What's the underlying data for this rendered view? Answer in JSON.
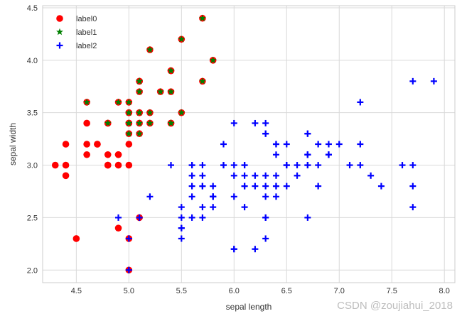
{
  "chart_data": {
    "type": "scatter",
    "title": "",
    "xlabel": "sepal length",
    "ylabel": "sepal width",
    "xlim": [
      4.18,
      8.1
    ],
    "ylim": [
      1.88,
      4.52
    ],
    "xticks": [
      "4.5",
      "5.0",
      "5.5",
      "6.0",
      "6.5",
      "7.0",
      "7.5",
      "8.0"
    ],
    "yticks": [
      "2.0",
      "2.5",
      "3.0",
      "3.5",
      "4.0",
      "4.5"
    ],
    "grid": true,
    "legend_position": "top-left",
    "series": [
      {
        "name": "label0",
        "marker": "circle",
        "color": "#ff0000",
        "points": [
          [
            5.1,
            3.5
          ],
          [
            4.9,
            3.0
          ],
          [
            4.7,
            3.2
          ],
          [
            4.6,
            3.1
          ],
          [
            5.0,
            3.6
          ],
          [
            5.4,
            3.9
          ],
          [
            4.6,
            3.4
          ],
          [
            5.0,
            3.4
          ],
          [
            4.4,
            2.9
          ],
          [
            4.9,
            3.1
          ],
          [
            5.4,
            3.7
          ],
          [
            4.8,
            3.4
          ],
          [
            4.8,
            3.0
          ],
          [
            4.3,
            3.0
          ],
          [
            5.8,
            4.0
          ],
          [
            5.7,
            4.4
          ],
          [
            5.4,
            3.9
          ],
          [
            5.1,
            3.5
          ],
          [
            5.7,
            3.8
          ],
          [
            5.1,
            3.8
          ],
          [
            5.4,
            3.4
          ],
          [
            5.1,
            3.7
          ],
          [
            4.6,
            3.6
          ],
          [
            5.1,
            3.3
          ],
          [
            4.8,
            3.4
          ],
          [
            5.0,
            3.0
          ],
          [
            5.0,
            3.4
          ],
          [
            5.2,
            3.5
          ],
          [
            5.2,
            3.4
          ],
          [
            4.7,
            3.2
          ],
          [
            4.8,
            3.1
          ],
          [
            5.4,
            3.4
          ],
          [
            5.2,
            4.1
          ],
          [
            5.5,
            4.2
          ],
          [
            4.9,
            3.1
          ],
          [
            5.0,
            3.2
          ],
          [
            5.5,
            3.5
          ],
          [
            4.9,
            3.6
          ],
          [
            4.4,
            3.0
          ],
          [
            5.1,
            3.4
          ],
          [
            5.0,
            3.5
          ],
          [
            4.5,
            2.3
          ],
          [
            4.4,
            3.2
          ],
          [
            5.0,
            3.5
          ],
          [
            5.1,
            3.8
          ],
          [
            4.8,
            3.0
          ],
          [
            5.1,
            3.8
          ],
          [
            4.6,
            3.2
          ],
          [
            5.3,
            3.7
          ],
          [
            5.0,
            3.3
          ],
          [
            5.0,
            2.0
          ],
          [
            5.0,
            2.3
          ],
          [
            4.9,
            2.4
          ],
          [
            5.1,
            2.5
          ]
        ]
      },
      {
        "name": "label1",
        "marker": "star",
        "color": "#008000",
        "points": [
          [
            5.1,
            3.5
          ],
          [
            5.4,
            3.9
          ],
          [
            5.0,
            3.4
          ],
          [
            5.4,
            3.7
          ],
          [
            4.8,
            3.4
          ],
          [
            5.8,
            4.0
          ],
          [
            5.7,
            4.4
          ],
          [
            5.4,
            3.9
          ],
          [
            5.1,
            3.5
          ],
          [
            5.7,
            3.8
          ],
          [
            5.1,
            3.8
          ],
          [
            5.4,
            3.4
          ],
          [
            5.1,
            3.7
          ],
          [
            4.6,
            3.6
          ],
          [
            5.1,
            3.3
          ],
          [
            5.0,
            3.4
          ],
          [
            5.2,
            3.5
          ],
          [
            5.2,
            3.4
          ],
          [
            5.4,
            3.4
          ],
          [
            5.2,
            4.1
          ],
          [
            5.5,
            4.2
          ],
          [
            5.0,
            3.5
          ],
          [
            4.9,
            3.6
          ],
          [
            5.1,
            3.4
          ],
          [
            5.0,
            3.5
          ],
          [
            5.1,
            3.8
          ],
          [
            5.3,
            3.7
          ],
          [
            5.0,
            3.3
          ],
          [
            5.5,
            3.5
          ],
          [
            5.0,
            3.6
          ]
        ]
      },
      {
        "name": "label2",
        "marker": "plus",
        "color": "#0000ff",
        "points": [
          [
            7.0,
            3.2
          ],
          [
            6.4,
            3.2
          ],
          [
            6.9,
            3.1
          ],
          [
            5.5,
            2.3
          ],
          [
            6.5,
            2.8
          ],
          [
            5.7,
            2.8
          ],
          [
            6.3,
            3.3
          ],
          [
            4.9,
            2.5
          ],
          [
            6.6,
            2.9
          ],
          [
            5.2,
            2.7
          ],
          [
            5.0,
            2.0
          ],
          [
            5.9,
            3.0
          ],
          [
            6.0,
            2.2
          ],
          [
            6.1,
            2.9
          ],
          [
            5.6,
            2.9
          ],
          [
            6.7,
            3.1
          ],
          [
            5.6,
            3.0
          ],
          [
            5.8,
            2.7
          ],
          [
            6.2,
            2.2
          ],
          [
            5.6,
            2.5
          ],
          [
            5.9,
            3.2
          ],
          [
            6.1,
            2.8
          ],
          [
            6.3,
            2.5
          ],
          [
            6.1,
            2.8
          ],
          [
            6.4,
            2.9
          ],
          [
            6.6,
            3.0
          ],
          [
            6.8,
            2.8
          ],
          [
            6.7,
            3.0
          ],
          [
            6.0,
            2.9
          ],
          [
            5.7,
            2.6
          ],
          [
            5.5,
            2.4
          ],
          [
            5.5,
            2.4
          ],
          [
            5.8,
            2.7
          ],
          [
            6.0,
            2.7
          ],
          [
            5.4,
            3.0
          ],
          [
            6.0,
            3.4
          ],
          [
            6.7,
            3.1
          ],
          [
            6.3,
            2.3
          ],
          [
            5.6,
            3.0
          ],
          [
            5.5,
            2.5
          ],
          [
            5.5,
            2.6
          ],
          [
            6.1,
            3.0
          ],
          [
            5.8,
            2.6
          ],
          [
            5.0,
            2.3
          ],
          [
            5.6,
            2.7
          ],
          [
            5.7,
            3.0
          ],
          [
            5.7,
            2.9
          ],
          [
            6.2,
            2.9
          ],
          [
            5.1,
            2.5
          ],
          [
            5.7,
            2.8
          ],
          [
            6.3,
            3.3
          ],
          [
            5.8,
            2.7
          ],
          [
            7.1,
            3.0
          ],
          [
            6.3,
            2.9
          ],
          [
            6.5,
            3.0
          ],
          [
            7.6,
            3.0
          ],
          [
            7.3,
            2.9
          ],
          [
            6.7,
            2.5
          ],
          [
            7.2,
            3.6
          ],
          [
            6.5,
            3.2
          ],
          [
            6.4,
            2.7
          ],
          [
            6.8,
            3.0
          ],
          [
            5.7,
            2.5
          ],
          [
            5.8,
            2.8
          ],
          [
            6.4,
            3.2
          ],
          [
            6.5,
            3.0
          ],
          [
            7.7,
            3.8
          ],
          [
            7.7,
            2.6
          ],
          [
            6.0,
            2.2
          ],
          [
            6.9,
            3.2
          ],
          [
            5.6,
            2.8
          ],
          [
            7.7,
            2.8
          ],
          [
            6.3,
            2.7
          ],
          [
            6.7,
            3.3
          ],
          [
            7.2,
            3.2
          ],
          [
            6.2,
            2.8
          ],
          [
            6.1,
            3.0
          ],
          [
            6.4,
            2.8
          ],
          [
            7.2,
            3.0
          ],
          [
            7.4,
            2.8
          ],
          [
            7.9,
            3.8
          ],
          [
            6.4,
            2.8
          ],
          [
            6.3,
            2.8
          ],
          [
            6.1,
            2.6
          ],
          [
            7.7,
            3.0
          ],
          [
            6.3,
            3.4
          ],
          [
            6.4,
            3.1
          ],
          [
            6.0,
            3.0
          ],
          [
            6.9,
            3.1
          ],
          [
            6.7,
            3.1
          ],
          [
            6.9,
            3.1
          ],
          [
            5.8,
            2.7
          ],
          [
            6.8,
            3.2
          ],
          [
            6.7,
            3.3
          ],
          [
            6.7,
            3.0
          ],
          [
            6.3,
            2.5
          ],
          [
            6.5,
            3.0
          ],
          [
            6.2,
            3.4
          ],
          [
            5.9,
            3.0
          ]
        ]
      }
    ]
  },
  "watermark": "CSDN @zoujiahui_2018"
}
